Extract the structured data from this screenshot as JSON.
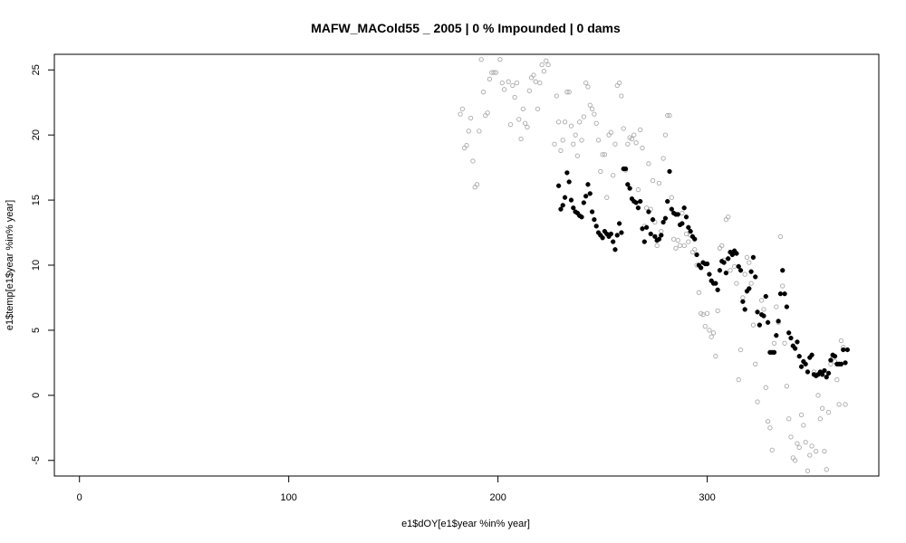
{
  "chart_data": {
    "type": "scatter",
    "title": "MAFW_MACold55 _ 2005   |   0  % Impounded |  0  dams",
    "xlabel": "e1$dOY[e1$year %in% year]",
    "ylabel": "e1$temp[e1$year %in% year]",
    "xlim": [
      -12,
      382
    ],
    "ylim": [
      -6.2,
      26.2
    ],
    "xticks": [
      0,
      100,
      200,
      300
    ],
    "yticks": [
      -5,
      0,
      5,
      10,
      15,
      20,
      25
    ],
    "grid": false,
    "colors": {
      "observed": "#aaaaaa",
      "predicted": "#000000"
    },
    "series": [
      {
        "marker": "open-circle",
        "points": [
          [
            182,
            21.6
          ],
          [
            183,
            22.0
          ],
          [
            184,
            19.0
          ],
          [
            185,
            19.2
          ],
          [
            186,
            20.3
          ],
          [
            187,
            21.3
          ],
          [
            188,
            18.0
          ],
          [
            189,
            16.0
          ],
          [
            190,
            16.2
          ],
          [
            191,
            20.3
          ],
          [
            192,
            25.8
          ],
          [
            193,
            23.3
          ],
          [
            194,
            21.5
          ],
          [
            195,
            21.7
          ],
          [
            196,
            24.3
          ],
          [
            197,
            24.8
          ],
          [
            198,
            24.8
          ],
          [
            199,
            24.8
          ],
          [
            201,
            25.8
          ],
          [
            202,
            24.0
          ],
          [
            203,
            23.5
          ],
          [
            205,
            24.1
          ],
          [
            206,
            20.8
          ],
          [
            207,
            23.8
          ],
          [
            208,
            22.9
          ],
          [
            209,
            24.0
          ],
          [
            210,
            21.2
          ],
          [
            211,
            19.7
          ],
          [
            212,
            22.0
          ],
          [
            213,
            20.9
          ],
          [
            214,
            20.6
          ],
          [
            215,
            23.4
          ],
          [
            216,
            24.4
          ],
          [
            217,
            24.6
          ],
          [
            218,
            24.1
          ],
          [
            219,
            22.0
          ],
          [
            220,
            24.0
          ],
          [
            221,
            25.4
          ],
          [
            222,
            24.9
          ],
          [
            223,
            25.7
          ],
          [
            224,
            25.4
          ],
          [
            227,
            19.3
          ],
          [
            228,
            23.0
          ],
          [
            229,
            21.0
          ],
          [
            230,
            18.8
          ],
          [
            231,
            19.6
          ],
          [
            232,
            21.0
          ],
          [
            233,
            23.3
          ],
          [
            234,
            23.3
          ],
          [
            235,
            20.7
          ],
          [
            236,
            19.3
          ],
          [
            237,
            20.0
          ],
          [
            238,
            18.4
          ],
          [
            239,
            21.0
          ],
          [
            240,
            19.6
          ],
          [
            241,
            21.4
          ],
          [
            242,
            24.0
          ],
          [
            243,
            23.7
          ],
          [
            244,
            22.3
          ],
          [
            245,
            22.0
          ],
          [
            246,
            21.6
          ],
          [
            247,
            20.9
          ],
          [
            248,
            19.6
          ],
          [
            249,
            17.2
          ],
          [
            250,
            18.5
          ],
          [
            251,
            18.5
          ],
          [
            252,
            15.2
          ],
          [
            253,
            20.0
          ],
          [
            254,
            20.2
          ],
          [
            255,
            16.9
          ],
          [
            256,
            19.3
          ],
          [
            257,
            23.8
          ],
          [
            258,
            24.0
          ],
          [
            259,
            23.0
          ],
          [
            260,
            20.5
          ],
          [
            261,
            17.3
          ],
          [
            262,
            19.3
          ],
          [
            263,
            19.8
          ],
          [
            264,
            19.7
          ],
          [
            265,
            20.0
          ],
          [
            266,
            19.4
          ],
          [
            267,
            15.8
          ],
          [
            268,
            20.4
          ],
          [
            269,
            19.0
          ],
          [
            270,
            13.0
          ],
          [
            271,
            14.4
          ],
          [
            272,
            17.8
          ],
          [
            273,
            14.3
          ],
          [
            274,
            16.5
          ],
          [
            275,
            13.3
          ],
          [
            276,
            11.5
          ],
          [
            277,
            16.3
          ],
          [
            278,
            12.6
          ],
          [
            279,
            18.2
          ],
          [
            280,
            20.0
          ],
          [
            281,
            21.5
          ],
          [
            282,
            21.5
          ],
          [
            283,
            15.2
          ],
          [
            284,
            12.0
          ],
          [
            285,
            11.3
          ],
          [
            286,
            11.9
          ],
          [
            287,
            11.5
          ],
          [
            288,
            14.0
          ],
          [
            289,
            11.5
          ],
          [
            290,
            12.4
          ],
          [
            291,
            11.8
          ],
          [
            292,
            12.3
          ],
          [
            293,
            11.0
          ],
          [
            294,
            11.2
          ],
          [
            295,
            10.0
          ],
          [
            296,
            7.9
          ],
          [
            297,
            6.3
          ],
          [
            298,
            6.2
          ],
          [
            299,
            5.3
          ],
          [
            300,
            6.3
          ],
          [
            301,
            5.0
          ],
          [
            302,
            4.5
          ],
          [
            303,
            4.8
          ],
          [
            304,
            3.0
          ],
          [
            305,
            6.5
          ],
          [
            306,
            11.3
          ],
          [
            307,
            11.5
          ],
          [
            308,
            10.4
          ],
          [
            309,
            13.5
          ],
          [
            310,
            13.7
          ],
          [
            311,
            9.6
          ],
          [
            312,
            11.0
          ],
          [
            313,
            9.9
          ],
          [
            314,
            8.6
          ],
          [
            315,
            1.2
          ],
          [
            316,
            3.5
          ],
          [
            317,
            7.5
          ],
          [
            318,
            9.3
          ],
          [
            319,
            10.6
          ],
          [
            320,
            10.2
          ],
          [
            321,
            8.6
          ],
          [
            322,
            5.4
          ],
          [
            323,
            2.4
          ],
          [
            324,
            -0.5
          ],
          [
            325,
            5.4
          ],
          [
            326,
            7.3
          ],
          [
            327,
            6.6
          ],
          [
            328,
            0.6
          ],
          [
            329,
            -2.0
          ],
          [
            330,
            -2.5
          ],
          [
            331,
            -4.2
          ],
          [
            332,
            4.0
          ],
          [
            333,
            6.8
          ],
          [
            334,
            5.6
          ],
          [
            335,
            12.2
          ],
          [
            336,
            8.4
          ],
          [
            337,
            4.0
          ],
          [
            338,
            0.7
          ],
          [
            339,
            -1.8
          ],
          [
            340,
            -3.2
          ],
          [
            341,
            -4.8
          ],
          [
            342,
            -5.0
          ],
          [
            343,
            -3.7
          ],
          [
            344,
            -4.0
          ],
          [
            345,
            -1.5
          ],
          [
            346,
            -2.3
          ],
          [
            347,
            -3.6
          ],
          [
            348,
            -5.8
          ],
          [
            349,
            -4.6
          ],
          [
            350,
            -3.9
          ],
          [
            351,
            1.8
          ],
          [
            352,
            -4.3
          ],
          [
            353,
            0.0
          ],
          [
            354,
            -1.8
          ],
          [
            355,
            -1.0
          ],
          [
            356,
            -4.3
          ],
          [
            357,
            -5.7
          ],
          [
            358,
            -1.3
          ],
          [
            359,
            2.4
          ],
          [
            360,
            3.0
          ],
          [
            361,
            2.6
          ],
          [
            362,
            1.2
          ],
          [
            363,
            -0.7
          ],
          [
            364,
            4.2
          ],
          [
            365,
            3.7
          ],
          [
            366,
            -0.7
          ]
        ]
      },
      {
        "marker": "filled-circle",
        "points": [
          [
            229,
            16.1
          ],
          [
            230,
            14.3
          ],
          [
            231,
            14.6
          ],
          [
            232,
            15.2
          ],
          [
            233,
            17.1
          ],
          [
            234,
            16.4
          ],
          [
            235,
            15.0
          ],
          [
            236,
            14.4
          ],
          [
            237,
            14.1
          ],
          [
            238,
            14.0
          ],
          [
            239,
            13.8
          ],
          [
            240,
            13.7
          ],
          [
            241,
            14.8
          ],
          [
            242,
            15.3
          ],
          [
            243,
            16.2
          ],
          [
            244,
            15.5
          ],
          [
            245,
            14.1
          ],
          [
            246,
            13.5
          ],
          [
            247,
            13.0
          ],
          [
            248,
            12.5
          ],
          [
            249,
            12.3
          ],
          [
            250,
            12.1
          ],
          [
            251,
            12.6
          ],
          [
            252,
            12.4
          ],
          [
            253,
            12.2
          ],
          [
            254,
            12.4
          ],
          [
            255,
            11.8
          ],
          [
            256,
            11.2
          ],
          [
            257,
            12.3
          ],
          [
            258,
            13.2
          ],
          [
            259,
            12.5
          ],
          [
            260,
            17.4
          ],
          [
            261,
            17.4
          ],
          [
            262,
            16.2
          ],
          [
            263,
            15.9
          ],
          [
            264,
            15.1
          ],
          [
            265,
            14.9
          ],
          [
            266,
            14.8
          ],
          [
            267,
            14.4
          ],
          [
            268,
            14.9
          ],
          [
            269,
            12.8
          ],
          [
            270,
            11.8
          ],
          [
            271,
            12.9
          ],
          [
            272,
            14.1
          ],
          [
            273,
            12.4
          ],
          [
            274,
            13.5
          ],
          [
            275,
            12.2
          ],
          [
            276,
            11.9
          ],
          [
            277,
            12.0
          ],
          [
            278,
            12.3
          ],
          [
            279,
            13.3
          ],
          [
            280,
            13.6
          ],
          [
            281,
            14.9
          ],
          [
            282,
            17.2
          ],
          [
            283,
            14.3
          ],
          [
            284,
            14.0
          ],
          [
            285,
            13.9
          ],
          [
            286,
            13.9
          ],
          [
            287,
            13.1
          ],
          [
            288,
            13.2
          ],
          [
            289,
            14.4
          ],
          [
            290,
            13.7
          ],
          [
            291,
            12.9
          ],
          [
            292,
            12.6
          ],
          [
            293,
            12.2
          ],
          [
            294,
            12.0
          ],
          [
            295,
            10.8
          ],
          [
            296,
            10.0
          ],
          [
            297,
            9.8
          ],
          [
            298,
            10.2
          ],
          [
            299,
            10.1
          ],
          [
            300,
            10.1
          ],
          [
            301,
            9.3
          ],
          [
            302,
            8.8
          ],
          [
            303,
            8.6
          ],
          [
            304,
            8.6
          ],
          [
            305,
            8.1
          ],
          [
            306,
            9.6
          ],
          [
            307,
            10.3
          ],
          [
            308,
            10.2
          ],
          [
            309,
            9.4
          ],
          [
            310,
            10.5
          ],
          [
            311,
            11.0
          ],
          [
            312,
            10.8
          ],
          [
            313,
            11.1
          ],
          [
            314,
            10.9
          ],
          [
            315,
            9.9
          ],
          [
            316,
            9.6
          ],
          [
            317,
            7.2
          ],
          [
            318,
            6.6
          ],
          [
            319,
            8.0
          ],
          [
            320,
            8.2
          ],
          [
            321,
            9.5
          ],
          [
            322,
            10.6
          ],
          [
            323,
            9.1
          ],
          [
            324,
            6.4
          ],
          [
            325,
            5.4
          ],
          [
            326,
            6.2
          ],
          [
            327,
            6.1
          ],
          [
            328,
            7.6
          ],
          [
            329,
            5.6
          ],
          [
            330,
            3.3
          ],
          [
            331,
            3.3
          ],
          [
            332,
            3.3
          ],
          [
            333,
            4.6
          ],
          [
            334,
            5.7
          ],
          [
            335,
            7.8
          ],
          [
            336,
            9.6
          ],
          [
            337,
            7.8
          ],
          [
            338,
            6.8
          ],
          [
            339,
            4.8
          ],
          [
            340,
            4.4
          ],
          [
            341,
            3.8
          ],
          [
            342,
            3.6
          ],
          [
            343,
            4.1
          ],
          [
            344,
            3.0
          ],
          [
            345,
            2.2
          ],
          [
            346,
            2.6
          ],
          [
            347,
            2.4
          ],
          [
            348,
            1.8
          ],
          [
            349,
            2.9
          ],
          [
            350,
            3.1
          ],
          [
            351,
            1.6
          ],
          [
            352,
            1.5
          ],
          [
            353,
            1.6
          ],
          [
            354,
            1.8
          ],
          [
            355,
            1.6
          ],
          [
            356,
            1.9
          ],
          [
            357,
            1.4
          ],
          [
            358,
            1.7
          ],
          [
            359,
            2.7
          ],
          [
            360,
            3.1
          ],
          [
            361,
            3.0
          ],
          [
            362,
            2.4
          ],
          [
            363,
            2.4
          ],
          [
            364,
            2.4
          ],
          [
            365,
            3.5
          ],
          [
            366,
            2.5
          ],
          [
            367,
            3.5
          ]
        ]
      }
    ]
  }
}
